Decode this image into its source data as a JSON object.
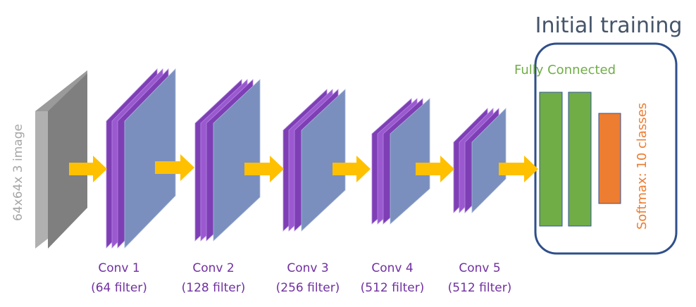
{
  "title": "Initial training",
  "input": {
    "label": "64x64x 3 image"
  },
  "layers": [
    {
      "name": "Conv 1",
      "filters": "(64 filter)"
    },
    {
      "name": "Conv 2",
      "filters": "(128 filter)"
    },
    {
      "name": "Conv 3",
      "filters": "(256 filter)"
    },
    {
      "name": "Conv 4",
      "filters": "(512 filter)"
    },
    {
      "name": "Conv 5",
      "filters": "(512 filter)"
    }
  ],
  "fully_connected": {
    "label": "Fully Connected"
  },
  "softmax": {
    "label": "Softmax: 10 classes"
  },
  "colors": {
    "title": "#44546a",
    "frame": "#2f4f8a",
    "conv_face": "#7a8fbd",
    "conv_layer": "#9b59d0",
    "conv_layer_dark": "#7e3fb5",
    "conv_caption": "#7030a0",
    "input_front": "#7f7f7f",
    "input_side": "#b0b0b0",
    "input_label": "#a6a6a6",
    "arrow": "#ffc000",
    "fc_bar": "#70ad47",
    "fc_border": "#2f5597",
    "fc_label": "#70ad47",
    "softmax_bar": "#ed7d31",
    "softmax_label": "#ed7d31"
  }
}
